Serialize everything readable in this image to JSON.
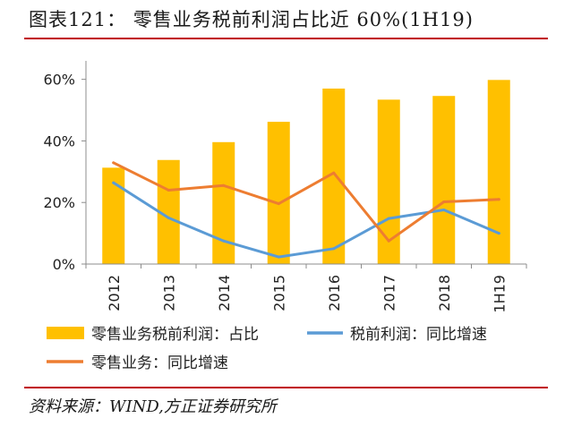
{
  "header": {
    "title": "图表121：   零售业务税前利润占比近 60%(1H19)"
  },
  "footer": {
    "source": "资料来源：WIND,方正证券研究所"
  },
  "colors": {
    "bar": "#FFC000",
    "line_blue": "#5B9BD5",
    "line_orange": "#ED7D31",
    "accent_rule": "#C0000B",
    "axis": "#8C8C8C"
  },
  "chart_data": {
    "type": "bar",
    "title": "",
    "xlabel": "",
    "ylabel": "",
    "categories": [
      "2012",
      "2013",
      "2014",
      "2015",
      "2016",
      "2017",
      "2018",
      "1H19"
    ],
    "yticks": [
      "0%",
      "20%",
      "40%",
      "60%"
    ],
    "ylim": [
      0,
      66
    ],
    "grid": false,
    "legend_position": "bottom",
    "series": [
      {
        "name": "零售业务税前利润：占比",
        "type": "bar",
        "color": "#FFC000",
        "values": [
          31.3,
          33.8,
          39.6,
          46.2,
          57.0,
          53.4,
          54.6,
          59.8
        ]
      },
      {
        "name": "税前利润：同比增速",
        "type": "line",
        "color": "#5B9BD5",
        "values": [
          26.4,
          15.0,
          7.5,
          2.3,
          5.0,
          14.8,
          17.6,
          10.0
        ]
      },
      {
        "name": "零售业务：同比增速",
        "type": "line",
        "color": "#ED7D31",
        "values": [
          32.9,
          24.0,
          25.5,
          19.6,
          29.6,
          7.5,
          20.2,
          21.0
        ]
      }
    ]
  }
}
